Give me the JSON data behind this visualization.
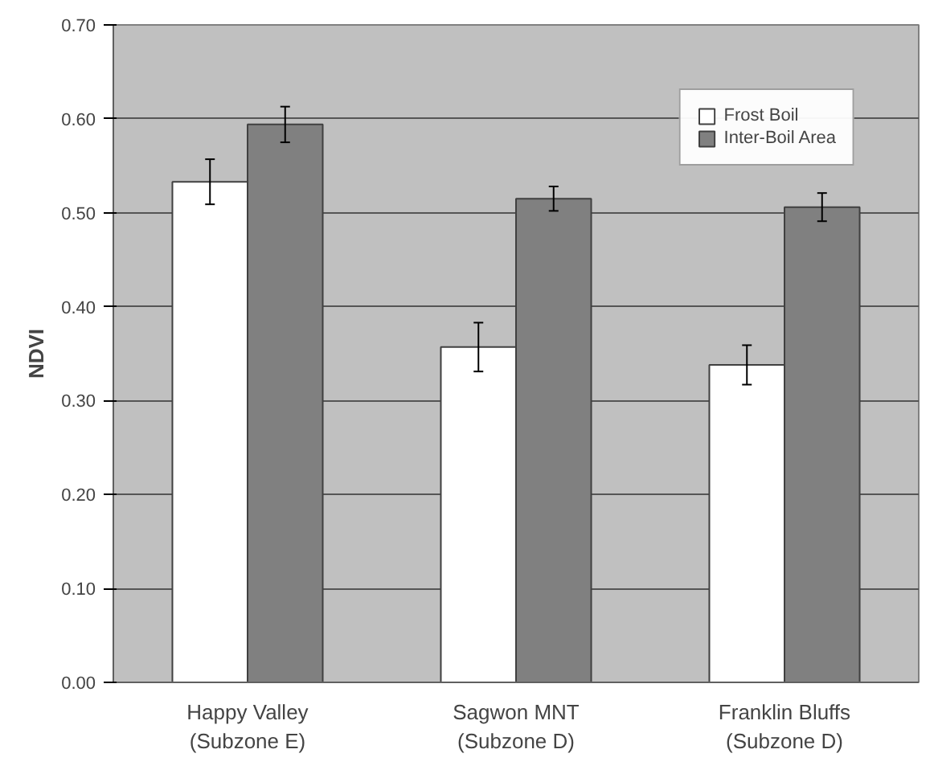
{
  "chart_data": {
    "type": "bar",
    "ylabel": "NDVI",
    "categories": [
      "Happy Valley\n(Subzone E)",
      "Sagwon MNT\n(Subzone D)",
      "Franklin Bluffs\n(Subzone D)"
    ],
    "series": [
      {
        "name": "Frost Boil",
        "color": "#ffffff",
        "values": [
          0.533,
          0.357,
          0.338
        ],
        "errors": [
          0.024,
          0.026,
          0.021
        ]
      },
      {
        "name": "Inter-Boil Area",
        "color": "#808080",
        "values": [
          0.594,
          0.515,
          0.506
        ],
        "errors": [
          0.019,
          0.013,
          0.015
        ]
      }
    ],
    "ylim": [
      0,
      0.7
    ],
    "yticks": [
      {
        "value": 0,
        "label": "0.00"
      },
      {
        "value": 0.1,
        "label": "0.10"
      },
      {
        "value": 0.2,
        "label": "0.20"
      },
      {
        "value": 0.3,
        "label": "0.30"
      },
      {
        "value": 0.4,
        "label": "0.40"
      },
      {
        "value": 0.5,
        "label": "0.50"
      },
      {
        "value": 0.6,
        "label": "0.60"
      },
      {
        "value": 0.7,
        "label": "0.70"
      }
    ],
    "grid": "y",
    "legend": "top right"
  }
}
